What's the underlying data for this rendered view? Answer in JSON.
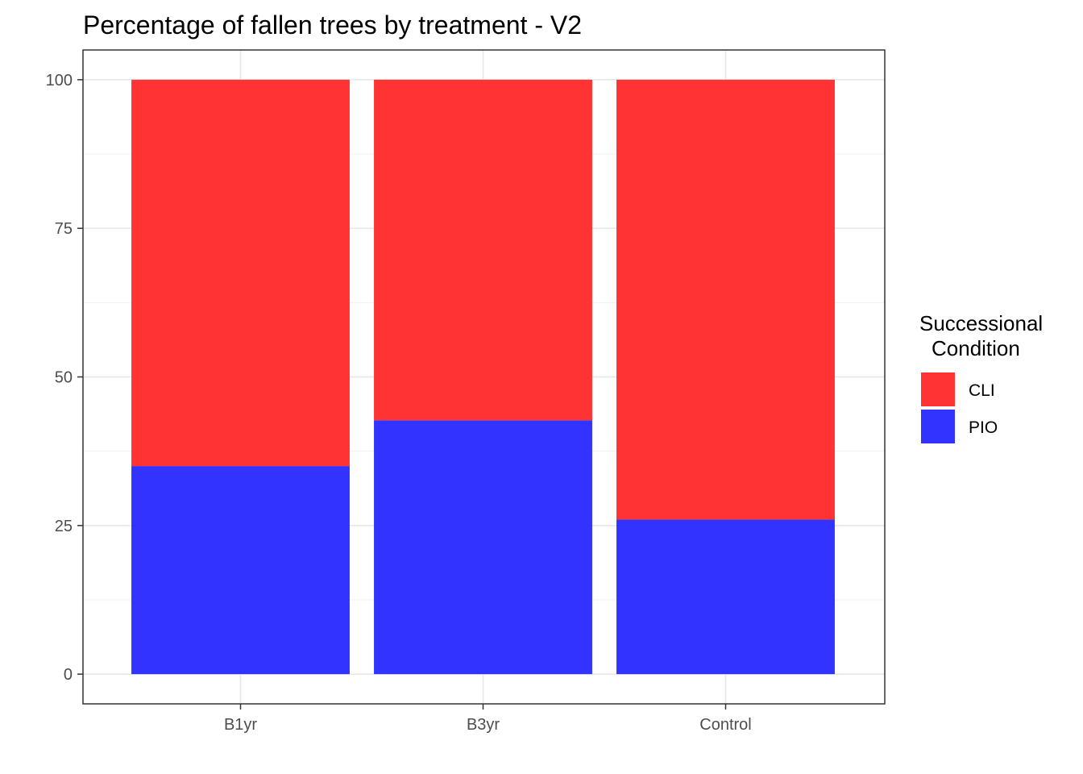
{
  "chart_data": {
    "type": "bar",
    "stacked": true,
    "title": "Percentage of fallen trees by treatment - V2",
    "xlabel": "",
    "ylabel": "",
    "categories": [
      "B1yr",
      "B3yr",
      "Control"
    ],
    "series": [
      {
        "name": "PIO",
        "color": "#3333ff",
        "values": [
          35,
          42.7,
          26
        ]
      },
      {
        "name": "CLI",
        "color": "#ff3333",
        "values": [
          65,
          57.3,
          74
        ]
      }
    ],
    "ylim": [
      -5,
      105
    ],
    "yticks": [
      0,
      25,
      50,
      75,
      100
    ],
    "grid": true,
    "legend": {
      "title_lines": [
        "Successional",
        "Condition"
      ],
      "position": "right",
      "order": [
        "CLI",
        "PIO"
      ]
    }
  }
}
